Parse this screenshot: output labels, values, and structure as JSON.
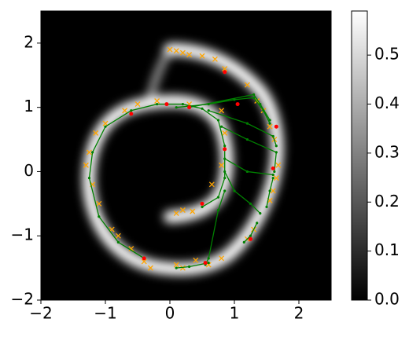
{
  "chart_data": {
    "type": "scatter",
    "xlim": [
      -2,
      2.5
    ],
    "ylim": [
      -2,
      2.5
    ],
    "xticks": [
      {
        "value": -2,
        "label": "−2"
      },
      {
        "value": -1,
        "label": "−1"
      },
      0,
      1,
      2
    ],
    "yticks": [
      {
        "value": -2,
        "label": "−2"
      },
      {
        "value": -1,
        "label": "−1"
      },
      0,
      1,
      2
    ],
    "colorbar": {
      "lim": [
        0,
        0.59
      ],
      "colormap": [
        "#000000",
        "#ffffff"
      ],
      "ticks": [
        {
          "value": 0,
          "label": "0.0"
        },
        0.1,
        0.2,
        0.3,
        0.4,
        0.5
      ]
    },
    "series": [
      {
        "marker": "x",
        "color": "#ffa500",
        "x": [
          0.0,
          0.1,
          0.2,
          0.3,
          0.5,
          0.7,
          0.85,
          1.2,
          1.35,
          1.45,
          1.55,
          1.62,
          1.68,
          1.65,
          1.6,
          1.55,
          1.3,
          1.2,
          0.8,
          0.6,
          0.4,
          0.2,
          0.1,
          -0.3,
          -0.4,
          -0.6,
          -0.8,
          -0.9,
          -1.1,
          -1.2,
          -1.3,
          -1.25,
          -1.15,
          -1.0,
          -0.7,
          -0.5,
          -0.2,
          0.3,
          0.8,
          0.85,
          0.8,
          0.65,
          0.1,
          0.2,
          0.35
        ],
        "y": [
          1.9,
          1.88,
          1.85,
          1.82,
          1.8,
          1.75,
          1.6,
          1.35,
          1.1,
          0.95,
          0.7,
          0.5,
          0.1,
          -0.1,
          -0.3,
          -0.45,
          -0.9,
          -1.05,
          -1.35,
          -1.45,
          -1.38,
          -1.5,
          -1.45,
          -1.5,
          -1.4,
          -1.2,
          -1.0,
          -0.9,
          -0.5,
          -0.2,
          0.1,
          0.3,
          0.6,
          0.75,
          0.95,
          1.05,
          1.1,
          1.05,
          0.95,
          0.6,
          0.1,
          -0.2,
          -0.65,
          -0.6,
          -0.62
        ]
      },
      {
        "marker": "line",
        "color": "#008000",
        "x": [
          -0.4,
          -0.8,
          -1.1,
          -1.25,
          -1.2,
          -1.0,
          -0.6,
          -0.2,
          0.2,
          0.5,
          0.75,
          0.85,
          0.85,
          0.75,
          0.5
        ],
        "y": [
          -1.35,
          -1.1,
          -0.7,
          -0.1,
          0.3,
          0.7,
          0.95,
          1.05,
          1.05,
          0.98,
          0.8,
          0.4,
          -0.1,
          -0.4,
          -0.55
        ]
      },
      {
        "marker": "line",
        "color": "#008000",
        "x": [
          0.1,
          0.6,
          1.0,
          1.3,
          1.45,
          1.55
        ],
        "y": [
          1.0,
          1.05,
          1.12,
          1.15,
          0.95,
          0.75
        ]
      },
      {
        "marker": "line",
        "color": "#008000",
        "x": [
          0.3,
          1.3,
          1.4,
          1.55
        ],
        "y": [
          1.0,
          1.2,
          1.05,
          0.8
        ]
      },
      {
        "marker": "line",
        "color": "#008000",
        "x": [
          0.6,
          1.2,
          1.6,
          1.65
        ],
        "y": [
          0.95,
          0.75,
          0.55,
          0.4
        ]
      },
      {
        "marker": "line",
        "color": "#008000",
        "x": [
          0.8,
          1.2,
          1.65,
          1.62
        ],
        "y": [
          0.7,
          0.5,
          0.3,
          0.0
        ]
      },
      {
        "marker": "line",
        "color": "#008000",
        "x": [
          0.85,
          1.2,
          1.6
        ],
        "y": [
          0.2,
          0.0,
          -0.05
        ]
      },
      {
        "marker": "line",
        "color": "#008000",
        "x": [
          0.85,
          1.0,
          1.25,
          1.4
        ],
        "y": [
          0.0,
          -0.3,
          -0.5,
          -0.65
        ]
      },
      {
        "marker": "line",
        "color": "#008000",
        "x": [
          0.85,
          0.75,
          0.6,
          0.55
        ],
        "y": [
          -0.3,
          -0.6,
          -1.35,
          -1.45
        ]
      },
      {
        "marker": "line",
        "color": "#008000",
        "x": [
          1.35,
          1.25,
          1.15
        ],
        "y": [
          -0.8,
          -1.0,
          -1.1
        ]
      },
      {
        "marker": "line",
        "color": "#008000",
        "x": [
          0.1,
          0.3,
          0.6
        ],
        "y": [
          -1.5,
          -1.48,
          -1.42
        ]
      },
      {
        "marker": "line",
        "color": "#008000",
        "x": [
          1.6,
          1.55,
          1.5
        ],
        "y": [
          -0.1,
          -0.3,
          -0.55
        ]
      },
      {
        "marker": "dot",
        "color": "#ff0000",
        "x": [
          0.85,
          -0.05,
          0.3,
          1.05,
          1.65,
          1.6,
          0.85,
          0.5,
          1.25,
          -0.4,
          0.55,
          -0.6
        ],
        "y": [
          1.55,
          1.05,
          1.0,
          1.05,
          0.7,
          0.05,
          0.35,
          -0.5,
          -1.05,
          -1.35,
          -1.42,
          0.9
        ]
      }
    ]
  }
}
